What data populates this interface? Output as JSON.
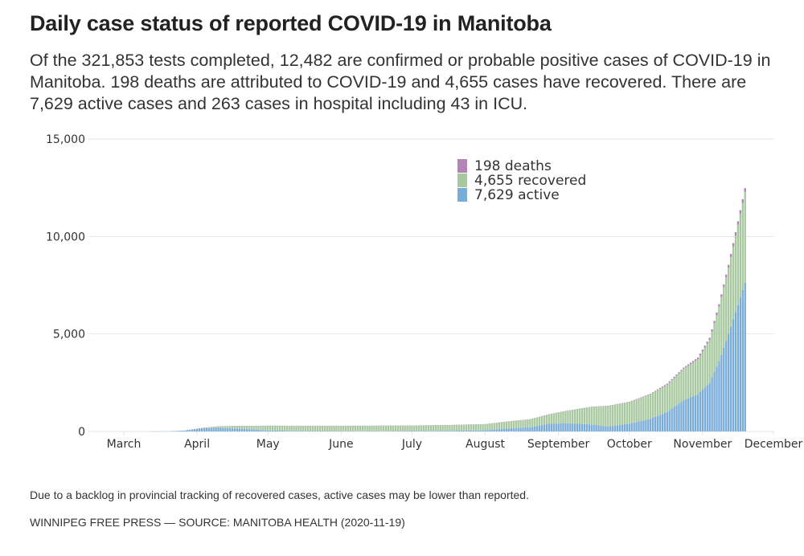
{
  "title": "Daily case status of reported COVID-19 in Manitoba",
  "subtitle": "Of the 321,853 tests completed, 12,482 are confirmed or probable positive cases of COVID-19 in Manitoba. 198 deaths are attributed to COVID-19 and 4,655 cases have recovered. There are 7,629 active cases and 263 cases in hospital including 43 in ICU.",
  "note": "Due to a backlog in provincial tracking of recovered cases, active cases may be lower than reported.",
  "source": "WINNIPEG FREE PRESS — SOURCE: MANITOBA HEALTH (2020-11-19)",
  "chart_data": {
    "type": "bar",
    "stacked": true,
    "title": "Daily case status of reported COVID-19 in Manitoba",
    "xlabel": "",
    "ylabel": "",
    "ylim": [
      0,
      15000
    ],
    "yticks": [
      0,
      5000,
      10000,
      15000
    ],
    "ytick_labels": [
      "0",
      "5,000",
      "10,000",
      "15,000"
    ],
    "xticks": [
      "March",
      "April",
      "May",
      "June",
      "July",
      "August",
      "September",
      "October",
      "November",
      "December"
    ],
    "grid": true,
    "legend_position": "top-center",
    "legend": [
      {
        "name": "deaths",
        "label": "198 deaths",
        "color": "#b284b7"
      },
      {
        "name": "recovered",
        "label": "4,655 recovered",
        "color": "#a8c99f"
      },
      {
        "name": "active",
        "label": "7,629 active",
        "color": "#7aacd9"
      }
    ],
    "colors": {
      "active": "#7aacd9",
      "recovered": "#a8c99f",
      "deaths": "#b284b7"
    },
    "x_start": "2020-03-12",
    "x_end": "2020-11-19",
    "anchors": {
      "dates": [
        "2020-03-12",
        "2020-03-20",
        "2020-03-27",
        "2020-04-03",
        "2020-04-10",
        "2020-04-17",
        "2020-04-24",
        "2020-05-01",
        "2020-05-15",
        "2020-06-01",
        "2020-06-15",
        "2020-07-01",
        "2020-07-15",
        "2020-08-01",
        "2020-08-10",
        "2020-08-20",
        "2020-08-28",
        "2020-09-05",
        "2020-09-15",
        "2020-09-22",
        "2020-10-01",
        "2020-10-10",
        "2020-10-17",
        "2020-10-24",
        "2020-10-30",
        "2020-11-04",
        "2020-11-08",
        "2020-11-12",
        "2020-11-16",
        "2020-11-19"
      ],
      "active": [
        0,
        10,
        50,
        160,
        190,
        150,
        110,
        50,
        25,
        15,
        10,
        20,
        30,
        60,
        150,
        220,
        390,
        420,
        360,
        250,
        400,
        650,
        1000,
        1600,
        1900,
        2500,
        3600,
        5000,
        6500,
        7629
      ],
      "recovered": [
        0,
        0,
        0,
        20,
        70,
        130,
        170,
        240,
        260,
        270,
        280,
        280,
        290,
        310,
        350,
        400,
        480,
        640,
        890,
        1050,
        1100,
        1250,
        1400,
        1600,
        1800,
        2200,
        2800,
        3400,
        4100,
        4655
      ],
      "deaths": [
        0,
        0,
        0,
        1,
        3,
        5,
        6,
        7,
        7,
        7,
        7,
        7,
        8,
        9,
        11,
        13,
        16,
        16,
        19,
        20,
        24,
        35,
        55,
        75,
        90,
        110,
        130,
        150,
        180,
        198
      ]
    }
  }
}
